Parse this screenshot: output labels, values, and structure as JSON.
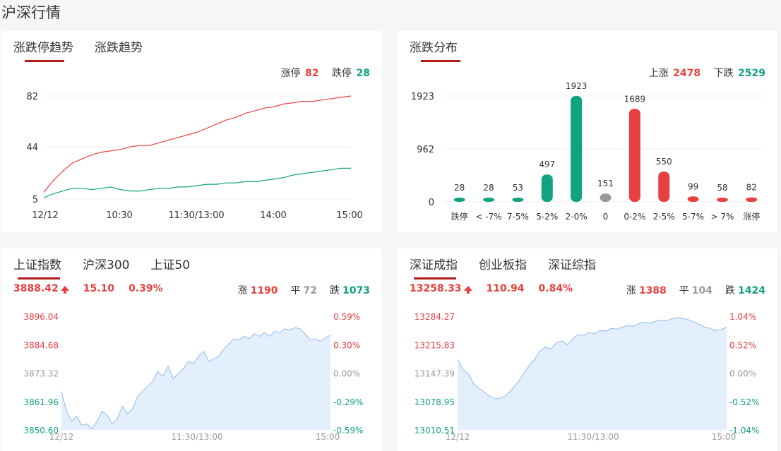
{
  "page_title": "沪深行情",
  "limit_card": {
    "tabs": [
      "涨跌停趋势",
      "涨跌趋势"
    ],
    "legend": {
      "up_label": "涨停",
      "up_value": "82",
      "down_label": "跌停",
      "down_value": "28"
    },
    "chart_data": {
      "type": "line",
      "x_ticks": [
        "12/12",
        "10:30",
        "11:30/13:00",
        "14:00",
        "15:00"
      ],
      "y_ticks": [
        "82",
        "44",
        "5"
      ],
      "ylim": [
        5,
        82
      ],
      "series": [
        {
          "name": "涨停",
          "color": "#e84040",
          "values": [
            10,
            19,
            26,
            32,
            35,
            38,
            40,
            41,
            42,
            44,
            45,
            45,
            47,
            49,
            51,
            53,
            55,
            58,
            61,
            64,
            66,
            69,
            71,
            73,
            74,
            76,
            77,
            78,
            78,
            79,
            80,
            81,
            82
          ]
        },
        {
          "name": "跌停",
          "color": "#0fa37f",
          "values": [
            6,
            9,
            11,
            13,
            13,
            12,
            13,
            14,
            12,
            11,
            11,
            12,
            13,
            13,
            14,
            14,
            15,
            16,
            16,
            17,
            17,
            18,
            18,
            19,
            20,
            21,
            23,
            24,
            25,
            26,
            27,
            28,
            28
          ]
        }
      ]
    }
  },
  "dist_card": {
    "tabs": [
      "涨跌分布"
    ],
    "legend": {
      "up_label": "上涨",
      "up_value": "2478",
      "down_label": "下跌",
      "down_value": "2529"
    },
    "chart_data": {
      "type": "bar",
      "categories": [
        "跌停",
        "< -7%",
        "7-5%",
        "5-2%",
        "2-0%",
        "0",
        "0-2%",
        "2-5%",
        "5-7%",
        "> 7%",
        "涨停"
      ],
      "values": [
        28,
        28,
        53,
        497,
        1923,
        151,
        1689,
        550,
        99,
        58,
        82
      ],
      "colors": [
        "#0fa37f",
        "#0fa37f",
        "#0fa37f",
        "#0fa37f",
        "#0fa37f",
        "#999999",
        "#e84040",
        "#e84040",
        "#e84040",
        "#e84040",
        "#e84040"
      ],
      "y_ticks": [
        "1923",
        "962",
        "0"
      ],
      "ylim": [
        0,
        1923
      ]
    }
  },
  "sh_card": {
    "tabs": [
      "上证指数",
      "沪深300",
      "上证50"
    ],
    "quote": {
      "price": "3888.42",
      "change": "15.10",
      "pct": "0.39%",
      "up_label": "涨",
      "up_value": "1190",
      "flat_label": "平",
      "flat_value": "72",
      "down_label": "跌",
      "down_value": "1073"
    },
    "chart_data": {
      "type": "area",
      "y_left_ticks": [
        "3896.04",
        "3884.68",
        "3873.32",
        "3861.96",
        "3850.60"
      ],
      "y_right_ticks": [
        "0.59%",
        "0.30%",
        "0.00%",
        "-0.29%",
        "-0.59%"
      ],
      "x_ticks": [
        "12/12",
        "11:30/13:00",
        "15:00"
      ],
      "ylim": [
        3850.6,
        3896.04
      ],
      "values": [
        3866.0,
        3858.0,
        3854.0,
        3856.0,
        3852.5,
        3853.0,
        3851.0,
        3854.0,
        3858.0,
        3856.5,
        3853.0,
        3855.0,
        3860.0,
        3857.0,
        3859.0,
        3864.0,
        3866.0,
        3868.0,
        3870.0,
        3874.0,
        3872.0,
        3876.0,
        3871.0,
        3873.0,
        3875.0,
        3878.0,
        3877.0,
        3880.0,
        3882.0,
        3878.0,
        3879.0,
        3880.0,
        3883.0,
        3885.0,
        3887.0,
        3886.5,
        3888.0,
        3887.0,
        3889.0,
        3888.0,
        3889.5,
        3888.0,
        3890.0,
        3889.5,
        3891.0,
        3890.5,
        3891.5,
        3891.0,
        3889.0,
        3886.5,
        3887.0,
        3886.0,
        3887.5,
        3888.4
      ]
    }
  },
  "sz_card": {
    "tabs": [
      "深证成指",
      "创业板指",
      "深证综指"
    ],
    "quote": {
      "price": "13258.33",
      "change": "110.94",
      "pct": "0.84%",
      "up_label": "涨",
      "up_value": "1388",
      "flat_label": "平",
      "flat_value": "104",
      "down_label": "跌",
      "down_value": "1424"
    },
    "chart_data": {
      "type": "area",
      "y_left_ticks": [
        "13284.27",
        "13215.83",
        "13147.39",
        "13078.95",
        "13010.51"
      ],
      "y_right_ticks": [
        "1.04%",
        "0.52%",
        "0.00%",
        "-0.52%",
        "-1.04%"
      ],
      "x_ticks": [
        "12/12",
        "11:30/13:00",
        "15:00"
      ],
      "ylim": [
        13010.51,
        13284.27
      ],
      "values": [
        13180.0,
        13155.0,
        13145.0,
        13120.0,
        13110.0,
        13100.0,
        13090.0,
        13085.0,
        13088.0,
        13095.0,
        13110.0,
        13125.0,
        13145.0,
        13165.0,
        13180.0,
        13200.0,
        13210.0,
        13205.0,
        13220.0,
        13225.0,
        13215.0,
        13230.0,
        13240.0,
        13238.0,
        13245.0,
        13242.0,
        13250.0,
        13248.0,
        13255.0,
        13253.0,
        13258.0,
        13262.0,
        13260.0,
        13266.0,
        13270.0,
        13268.0,
        13272.0,
        13275.0,
        13273.0,
        13278.0,
        13281.0,
        13279.0,
        13276.0,
        13270.0,
        13265.0,
        13258.0,
        13255.0,
        13250.0,
        13252.0,
        13258.3
      ]
    }
  }
}
